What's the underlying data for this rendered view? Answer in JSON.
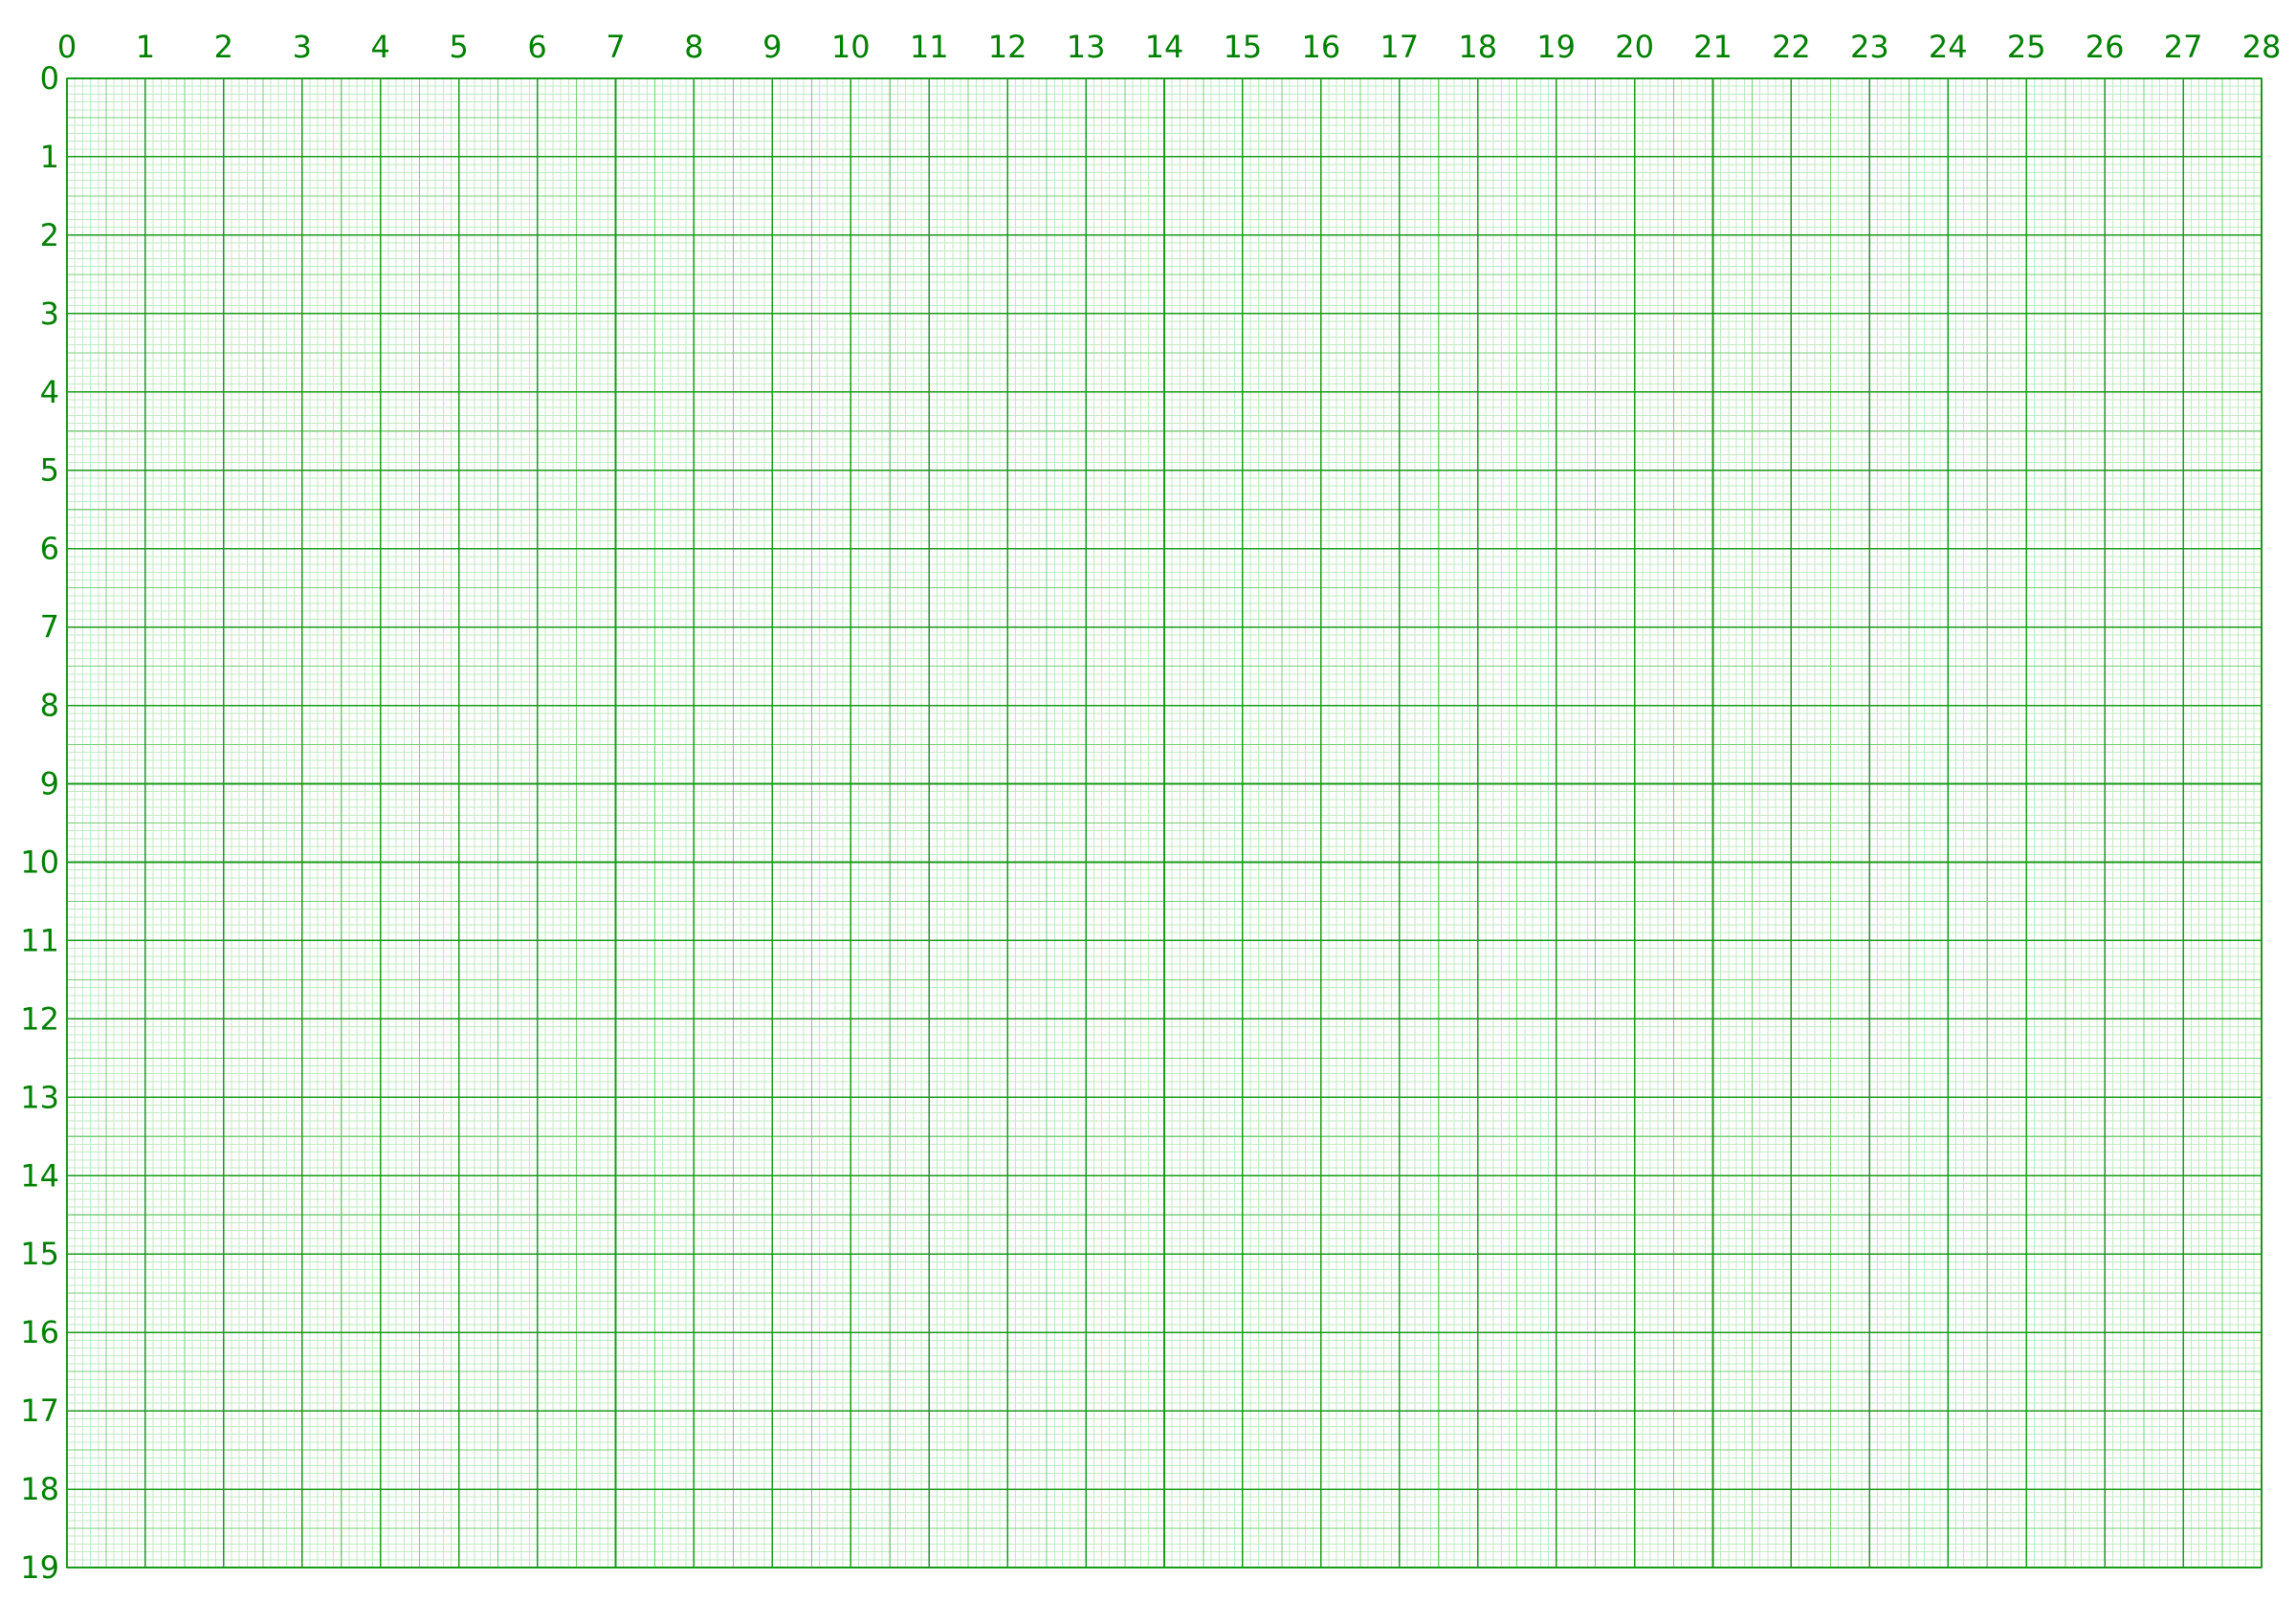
{
  "sheet": {
    "type": "metric graph paper",
    "grid": {
      "columns": 28,
      "rows": 19,
      "subdivisions_per_unit": 10,
      "mid_lines_emphasized": true
    },
    "colors": {
      "background": "#ffffff",
      "label": "#008000",
      "major_line": "#1a9a1a",
      "mid_line": "#7acc7a",
      "minor_line": "#c3e8c3"
    },
    "top_labels": [
      "0",
      "1",
      "2",
      "3",
      "4",
      "5",
      "6",
      "7",
      "8",
      "9",
      "10",
      "11",
      "12",
      "13",
      "14",
      "15",
      "16",
      "17",
      "18",
      "19",
      "20",
      "21",
      "22",
      "23",
      "24",
      "25",
      "26",
      "27",
      "28"
    ],
    "left_labels": [
      "0",
      "1",
      "2",
      "3",
      "4",
      "5",
      "6",
      "7",
      "8",
      "9",
      "10",
      "11",
      "12",
      "13",
      "14",
      "15",
      "16",
      "17",
      "18",
      "19"
    ]
  }
}
